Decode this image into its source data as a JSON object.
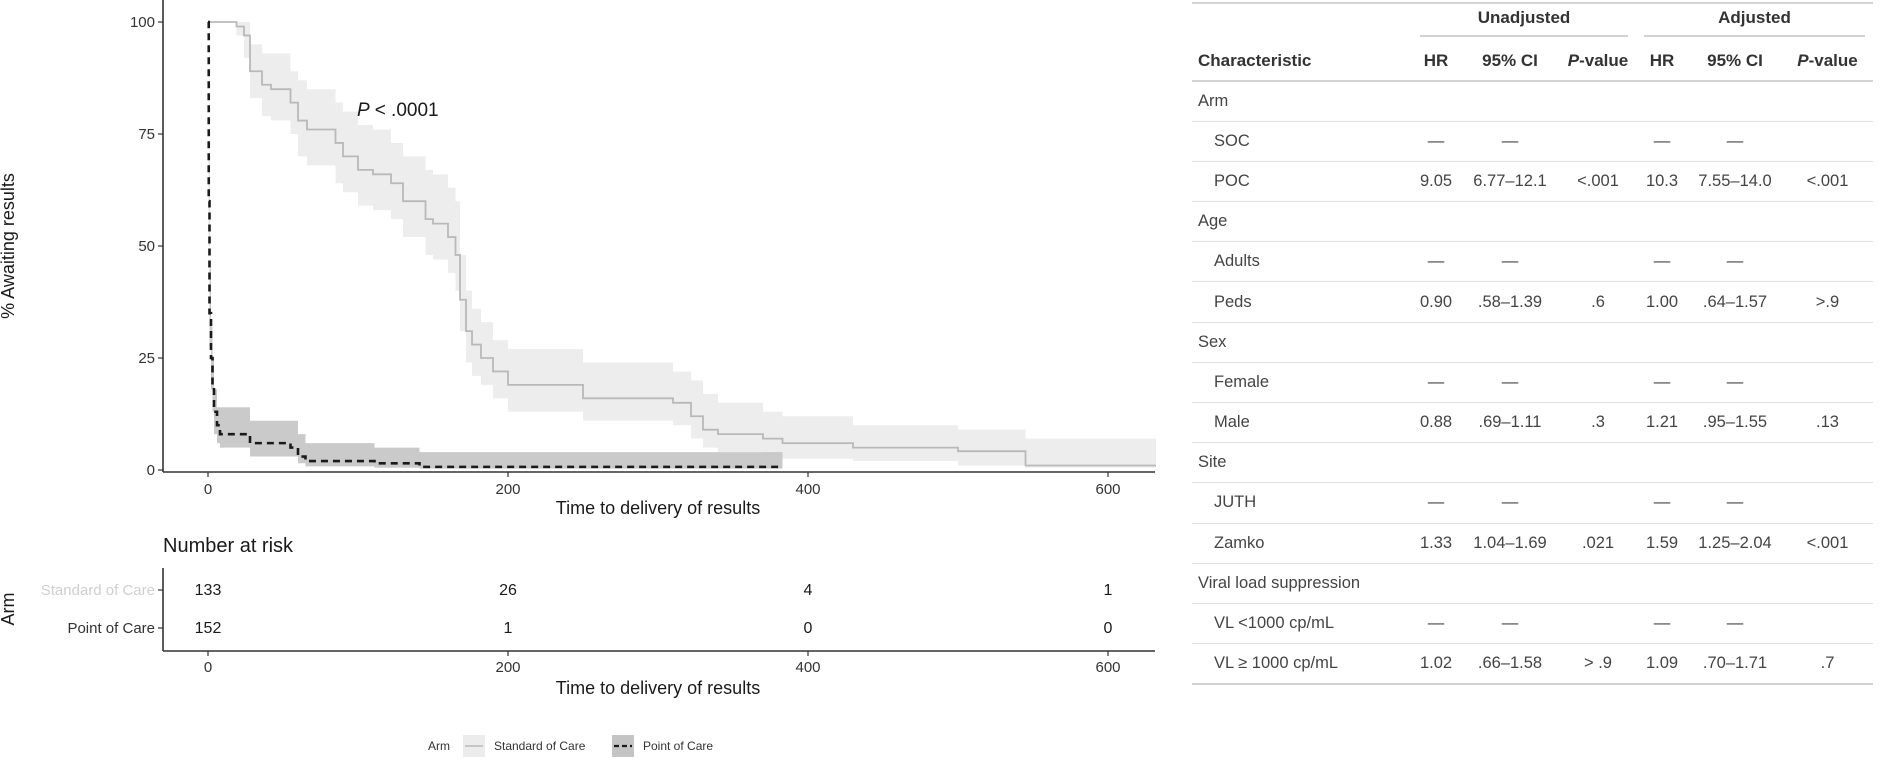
{
  "figure": {
    "left_panel": "Kaplan-Meier curve with number-at-risk table",
    "right_panel": "Cox regression results table"
  },
  "chart_data": [
    {
      "type": "line",
      "subtype": "kaplan-meier step",
      "title": "",
      "xlabel": "Time to delivery of results",
      "ylabel": "% Awaiting results",
      "xlim": [
        -25,
        632
      ],
      "ylim": [
        -5,
        104
      ],
      "x_ticks": [
        0,
        200,
        400,
        600
      ],
      "y_ticks": [
        0,
        25,
        50,
        75,
        100
      ],
      "grid": false,
      "annotation": {
        "text_italic": "P",
        "text": "< .0001",
        "x": 100,
        "y": 80
      },
      "legend": {
        "title": "Arm",
        "position": "bottom",
        "entries": [
          "Standard of Care",
          "Point of Care"
        ]
      },
      "series": [
        {
          "name": "Standard of Care",
          "style": "solid",
          "color": "#b9b9b9",
          "band_color": "#ececec",
          "x": [
            0,
            19,
            24,
            28,
            36,
            42,
            55,
            60,
            66,
            85,
            90,
            100,
            110,
            122,
            130,
            145,
            150,
            160,
            165,
            168,
            172,
            176,
            182,
            190,
            200,
            230,
            250,
            310,
            322,
            330,
            340,
            370,
            383,
            430,
            500,
            545,
            632
          ],
          "y": [
            100,
            99,
            97,
            89,
            86,
            85,
            82,
            78,
            76,
            73,
            70,
            67,
            66,
            64,
            60,
            56,
            55,
            52,
            48,
            38,
            31,
            28,
            25,
            22,
            19,
            19,
            16,
            15,
            12,
            9,
            8,
            7,
            6,
            5,
            4.2,
            1,
            1
          ],
          "ci_upper": [
            100,
            100,
            100,
            95,
            93,
            93,
            89,
            87,
            85,
            82,
            80,
            77,
            76,
            73,
            70,
            67,
            66,
            63,
            60,
            48,
            40,
            36,
            33,
            29,
            27,
            27,
            24,
            22,
            20,
            17,
            15,
            13,
            12,
            10,
            9,
            7,
            7
          ],
          "ci_lower": [
            100,
            97,
            92,
            83,
            79,
            78,
            75,
            70,
            68,
            64,
            62,
            59,
            58,
            56,
            52,
            48,
            47,
            44,
            40,
            31,
            24,
            21,
            19,
            16,
            13,
            13,
            11,
            10,
            7,
            5,
            4,
            3,
            2.5,
            2,
            1,
            0.5,
            0.5
          ]
        },
        {
          "name": "Point of Care",
          "style": "dashed",
          "color": "#1a1a1a",
          "band_color": "#c4c4c4",
          "x": [
            0,
            0.5,
            1,
            2,
            3,
            4,
            6,
            8,
            28,
            55,
            60,
            65,
            111,
            141,
            383
          ],
          "y": [
            100,
            60,
            35,
            25,
            18,
            13,
            10,
            8,
            6,
            5,
            3,
            2,
            1.5,
            0.7,
            0.7
          ],
          "ci_upper": [
            100,
            70,
            45,
            32,
            25,
            18,
            14,
            14,
            11,
            11,
            8,
            6,
            5,
            4,
            4
          ],
          "ci_lower": [
            100,
            50,
            27,
            18,
            13,
            8,
            6,
            5,
            3,
            3,
            1.5,
            0.8,
            0.5,
            0.3,
            0.3
          ]
        }
      ]
    },
    {
      "type": "table",
      "title": "Number at risk",
      "row_axis_label": "Arm",
      "xlabel": "Time to delivery of results",
      "x_ticks": [
        0,
        200,
        400,
        600
      ],
      "rows": [
        {
          "name": "Standard of Care",
          "values": [
            133,
            26,
            4,
            1
          ]
        },
        {
          "name": "Point of Care",
          "values": [
            152,
            1,
            0,
            0
          ]
        }
      ]
    }
  ],
  "plot": {
    "y_axis_title": "% Awaiting results",
    "x_axis_title": "Time to delivery of results",
    "y_tick_labels": [
      "0",
      "25",
      "50",
      "75",
      "100"
    ],
    "x_tick_labels": [
      "0",
      "200",
      "400",
      "600"
    ],
    "annotation_p": "P",
    "annotation_rest": "< .0001"
  },
  "risk_table": {
    "title": "Number at risk",
    "y_axis_title": "Arm",
    "x_axis_title": "Time to delivery of results",
    "x_tick_labels": [
      "0",
      "200",
      "400",
      "600"
    ],
    "rows": [
      {
        "label": "Standard of Care",
        "values": [
          "133",
          "26",
          "4",
          "1"
        ]
      },
      {
        "label": "Point of Care",
        "values": [
          "152",
          "1",
          "0",
          "0"
        ]
      }
    ]
  },
  "legend": {
    "title": "Arm",
    "items": [
      {
        "label": "Standard of Care"
      },
      {
        "label": "Point of Care"
      }
    ]
  },
  "table": {
    "spanners": [
      "Unadjusted",
      "Adjusted"
    ],
    "columns": {
      "characteristic": "Characteristic",
      "hr": "HR",
      "ci": "95% CI",
      "p_italic": "P",
      "p_rest": "-value"
    },
    "rows": [
      {
        "label": "Arm",
        "type": "group",
        "vals": [
          "",
          "",
          "",
          "",
          "",
          ""
        ]
      },
      {
        "label": "SOC",
        "type": "level",
        "vals": [
          "—",
          "—",
          "",
          "—",
          "—",
          ""
        ]
      },
      {
        "label": "POC",
        "type": "level",
        "vals": [
          "9.05",
          "6.77–12.1",
          "<.001",
          "10.3",
          "7.55–14.0",
          "<.001"
        ]
      },
      {
        "label": "Age",
        "type": "group",
        "vals": [
          "",
          "",
          "",
          "",
          "",
          ""
        ]
      },
      {
        "label": "Adults",
        "type": "level",
        "vals": [
          "—",
          "—",
          "",
          "—",
          "—",
          ""
        ]
      },
      {
        "label": "Peds",
        "type": "level",
        "vals": [
          "0.90",
          ".58–1.39",
          ".6",
          "1.00",
          ".64–1.57",
          ">.9"
        ]
      },
      {
        "label": "Sex",
        "type": "group",
        "vals": [
          "",
          "",
          "",
          "",
          "",
          ""
        ]
      },
      {
        "label": "Female",
        "type": "level",
        "vals": [
          "—",
          "—",
          "",
          "—",
          "—",
          ""
        ]
      },
      {
        "label": "Male",
        "type": "level",
        "vals": [
          "0.88",
          ".69–1.11",
          ".3",
          "1.21",
          ".95–1.55",
          ".13"
        ]
      },
      {
        "label": "Site",
        "type": "group",
        "vals": [
          "",
          "",
          "",
          "",
          "",
          ""
        ]
      },
      {
        "label": "JUTH",
        "type": "level",
        "vals": [
          "—",
          "—",
          "",
          "—",
          "—",
          ""
        ]
      },
      {
        "label": "Zamko",
        "type": "level",
        "vals": [
          "1.33",
          "1.04–1.69",
          ".021",
          "1.59",
          "1.25–2.04",
          "<.001"
        ]
      },
      {
        "label": "Viral load suppression",
        "type": "group",
        "vals": [
          "",
          "",
          "",
          "",
          "",
          ""
        ]
      },
      {
        "label": "VL <1000 cp/mL",
        "type": "level",
        "vals": [
          "—",
          "—",
          "",
          "—",
          "—",
          ""
        ]
      },
      {
        "label": "VL ≥ 1000 cp/mL",
        "type": "level",
        "vals": [
          "1.02",
          ".66–1.58",
          "> .9",
          "1.09",
          ".70–1.71",
          ".7"
        ]
      }
    ]
  }
}
